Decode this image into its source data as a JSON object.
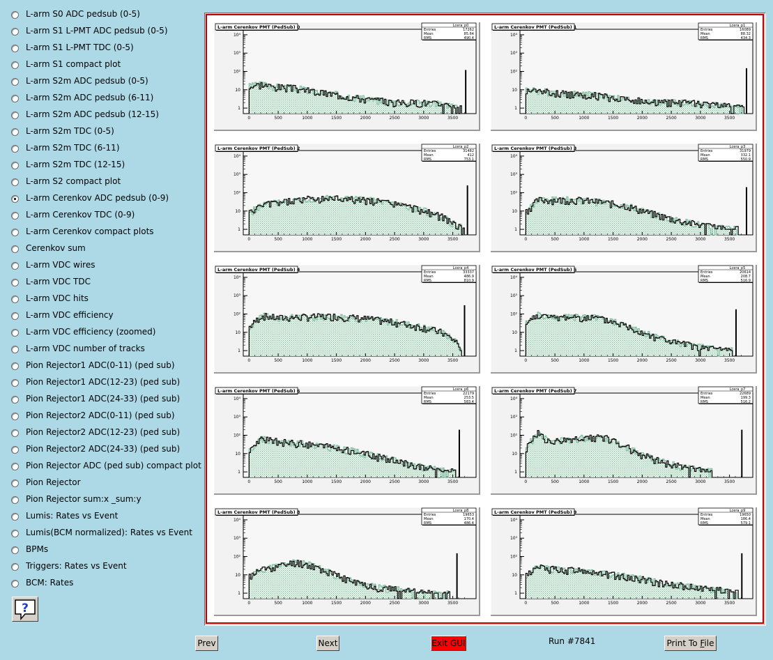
{
  "menu": {
    "selected_index": 11,
    "items": [
      "L-arm S0 ADC pedsub (0-5)",
      "L-arm S1 L-PMT ADC pedsub (0-5)",
      "L-arm S1 L-PMT TDC (0-5)",
      "L-arm S1 compact plot",
      "L-arm S2m ADC pedsub (0-5)",
      "L-arm S2m ADC pedsub (6-11)",
      "L-arm S2m ADC pedsub (12-15)",
      "L-arm S2m TDC (0-5)",
      "L-arm S2m TDC (6-11)",
      "L-arm S2m TDC (12-15)",
      "L-arm S2 compact plot",
      "L-arm Cerenkov ADC pedsub (0-9)",
      "L-arm Cerenkov TDC (0-9)",
      "L-arm Cerenkov compact plots",
      "Cerenkov sum",
      "L-arm VDC wires",
      "L-arm VDC TDC",
      "L-arm VDC hits",
      "L-arm VDC efficiency",
      "L-arm VDC efficiency (zoomed)",
      "L-arm VDC number of tracks",
      "Pion Rejector1 ADC(0-11) (ped sub)",
      "Pion Rejector1 ADC(12-23) (ped sub)",
      "Pion Rejector1 ADC(24-33) (ped sub)",
      "Pion Rejector2 ADC(0-11) (ped sub)",
      "Pion Rejector2 ADC(12-23) (ped sub)",
      "Pion Rejector2 ADC(24-33) (ped sub)",
      "Pion Rejector ADC (ped sub) compact plot",
      "Pion Rejector",
      "Pion Rejector sum:x _sum:y",
      "Lumis: Rates vs Event",
      "Lumis(BCM normalized): Rates vs Event",
      "BPMs",
      "Triggers: Rates vs Event",
      "BCM: Rates"
    ]
  },
  "help_icon": "question-mark-icon",
  "footer": {
    "prev_label": "Prev",
    "next_label": "Next",
    "exit_label": "Exit GUI",
    "run_label": "Run #7841",
    "print_label_pre": "Print To ",
    "print_label_ul": "F",
    "print_label_post": "ile"
  },
  "colors": {
    "background": "#add8e6",
    "canvas_border": "#c00000",
    "fill_hatch": "#7fbf9f",
    "exit_button": "#ff0000"
  },
  "chart_data": [
    {
      "type": "bar",
      "title": "L-arm Cerenkov PMT (PedSub) 0",
      "stats": {
        "name": "Lcera_p0",
        "Entries": "17262",
        "Mean": "85.64",
        "RMS": "490.4"
      },
      "xlim": [
        -100,
        3900
      ],
      "y_log": true,
      "ylim": [
        0.5,
        20000
      ],
      "x_ticks": [
        "0",
        "500",
        "1000",
        "1500",
        "2000",
        "2500",
        "3000",
        "3500"
      ],
      "y_ticks": [
        "1",
        "10",
        "10²",
        "10³",
        "10⁴"
      ],
      "profile": {
        "bulk": [
          [
            0,
            15
          ],
          [
            200,
            20
          ],
          [
            400,
            15
          ],
          [
            800,
            12
          ],
          [
            1200,
            7
          ],
          [
            1600,
            5
          ],
          [
            2000,
            3
          ],
          [
            2500,
            2
          ],
          [
            3000,
            2
          ],
          [
            3400,
            1.5
          ],
          [
            3600,
            1
          ]
        ],
        "cutoff": 3650,
        "overflow_x": 3710,
        "overflow_y": 120
      }
    },
    {
      "type": "bar",
      "title": "L-arm Cerenkov PMT (PedSub) 1",
      "stats": {
        "name": "Lcera_p1",
        "Entries": "16089",
        "Mean": "88.32",
        "RMS": "434.3"
      },
      "xlim": [
        -100,
        3900
      ],
      "y_log": true,
      "ylim": [
        0.5,
        20000
      ],
      "x_ticks": [
        "0",
        "500",
        "1000",
        "1500",
        "2000",
        "2500",
        "3000",
        "3500"
      ],
      "y_ticks": [
        "1",
        "10",
        "10²",
        "10³",
        "10⁴"
      ],
      "profile": {
        "bulk": [
          [
            0,
            10
          ],
          [
            300,
            8
          ],
          [
            700,
            6
          ],
          [
            1200,
            5
          ],
          [
            1700,
            3
          ],
          [
            2200,
            2
          ],
          [
            2700,
            2
          ],
          [
            3200,
            1.5
          ],
          [
            3700,
            1
          ]
        ],
        "cutoff": 3750,
        "overflow_x": 3780,
        "overflow_y": 150
      }
    },
    {
      "type": "bar",
      "title": "L-arm Cerenkov PMT (PedSub) 2",
      "stats": {
        "name": "Lcera_p2",
        "Entries": "31482",
        "Mean": "412",
        "RMS": "753.1"
      },
      "xlim": [
        -100,
        3900
      ],
      "y_log": true,
      "ylim": [
        0.5,
        20000
      ],
      "x_ticks": [
        "0",
        "500",
        "1000",
        "1500",
        "2000",
        "2500",
        "3000",
        "3500"
      ],
      "y_ticks": [
        "1",
        "10",
        "10²",
        "10³",
        "10⁴"
      ],
      "profile": {
        "bulk": [
          [
            0,
            8
          ],
          [
            200,
            20
          ],
          [
            500,
            30
          ],
          [
            1000,
            45
          ],
          [
            1500,
            50
          ],
          [
            2000,
            40
          ],
          [
            2500,
            25
          ],
          [
            3000,
            10
          ],
          [
            3300,
            5
          ],
          [
            3500,
            2
          ],
          [
            3700,
            1
          ]
        ],
        "cutoff": 3700,
        "overflow_x": 3740,
        "overflow_y": 250
      }
    },
    {
      "type": "bar",
      "title": "L-arm Cerenkov PMT (PedSub) 3",
      "stats": {
        "name": "Lcera_p3",
        "Entries": "31979",
        "Mean": "332.1",
        "RMS": "550.9"
      },
      "xlim": [
        -100,
        3900
      ],
      "y_log": true,
      "ylim": [
        0.5,
        20000
      ],
      "x_ticks": [
        "0",
        "500",
        "1000",
        "1500",
        "2000",
        "2500",
        "3000",
        "3500"
      ],
      "y_ticks": [
        "1",
        "10",
        "10²",
        "10³",
        "10⁴"
      ],
      "profile": {
        "bulk": [
          [
            0,
            10
          ],
          [
            200,
            40
          ],
          [
            500,
            40
          ],
          [
            900,
            40
          ],
          [
            1300,
            30
          ],
          [
            1700,
            20
          ],
          [
            2100,
            8
          ],
          [
            2600,
            3
          ],
          [
            3100,
            1.5
          ],
          [
            3600,
            1
          ]
        ],
        "cutoff": 3650,
        "overflow_x": 3780,
        "overflow_y": 200
      }
    },
    {
      "type": "bar",
      "title": "L-arm Cerenkov PMT (PedSub) 4",
      "stats": {
        "name": "Lcera_p4",
        "Entries": "33337",
        "Mean": "486.9",
        "RMS": "810.9"
      },
      "xlim": [
        -100,
        3900
      ],
      "y_log": true,
      "ylim": [
        0.5,
        20000
      ],
      "x_ticks": [
        "0",
        "500",
        "1000",
        "1500",
        "2000",
        "2500",
        "3000",
        "3500"
      ],
      "y_ticks": [
        "1",
        "10",
        "10²",
        "10³",
        "10⁴"
      ],
      "profile": {
        "bulk": [
          [
            0,
            20
          ],
          [
            200,
            80
          ],
          [
            500,
            60
          ],
          [
            1000,
            70
          ],
          [
            1500,
            75
          ],
          [
            2000,
            55
          ],
          [
            2500,
            35
          ],
          [
            3000,
            18
          ],
          [
            3300,
            10
          ],
          [
            3550,
            3
          ],
          [
            3650,
            1
          ]
        ],
        "cutoff": 3650,
        "overflow_x": 3690,
        "overflow_y": 300
      }
    },
    {
      "type": "bar",
      "title": "L-arm Cerenkov PMT (PedSub) 5",
      "stats": {
        "name": "Lcera_p5",
        "Entries": "20614",
        "Mean": "208.7",
        "RMS": "516.9"
      },
      "xlim": [
        -100,
        3900
      ],
      "y_log": true,
      "ylim": [
        0.5,
        20000
      ],
      "x_ticks": [
        "0",
        "500",
        "1000",
        "1500",
        "2000",
        "2500",
        "3000",
        "3500"
      ],
      "y_ticks": [
        "1",
        "10",
        "10²",
        "10³",
        "10⁴"
      ],
      "profile": {
        "bulk": [
          [
            0,
            30
          ],
          [
            200,
            100
          ],
          [
            400,
            60
          ],
          [
            800,
            70
          ],
          [
            1200,
            60
          ],
          [
            1600,
            30
          ],
          [
            2000,
            10
          ],
          [
            2500,
            3
          ],
          [
            3000,
            1.5
          ],
          [
            3500,
            1
          ]
        ],
        "cutoff": 3550,
        "overflow_x": 3600,
        "overflow_y": 180
      }
    },
    {
      "type": "bar",
      "title": "L-arm Cerenkov PMT (PedSub) 6",
      "stats": {
        "name": "Lcera_p6",
        "Entries": "22179",
        "Mean": "253.5",
        "RMS": "583.4"
      },
      "xlim": [
        -100,
        3900
      ],
      "y_log": true,
      "ylim": [
        0.5,
        20000
      ],
      "x_ticks": [
        "0",
        "500",
        "1000",
        "1500",
        "2000",
        "2500",
        "3000",
        "3500"
      ],
      "y_ticks": [
        "1",
        "10",
        "10²",
        "10³",
        "10⁴"
      ],
      "profile": {
        "bulk": [
          [
            0,
            15
          ],
          [
            200,
            60
          ],
          [
            500,
            45
          ],
          [
            900,
            35
          ],
          [
            1300,
            25
          ],
          [
            1700,
            15
          ],
          [
            2100,
            8
          ],
          [
            2500,
            4
          ],
          [
            2900,
            2
          ],
          [
            3300,
            1.2
          ],
          [
            3500,
            1
          ]
        ],
        "cutoff": 3550,
        "overflow_x": 3600,
        "overflow_y": 200
      }
    },
    {
      "type": "bar",
      "title": "L-arm Cerenkov PMT (PedSub) 7",
      "stats": {
        "name": "Lcera_p7",
        "Entries": "22689",
        "Mean": "199.3",
        "RMS": "516.2"
      },
      "xlim": [
        -100,
        3900
      ],
      "y_log": true,
      "ylim": [
        0.5,
        20000
      ],
      "x_ticks": [
        "0",
        "500",
        "1000",
        "1500",
        "2000",
        "2500",
        "3000",
        "3500"
      ],
      "y_ticks": [
        "1",
        "10",
        "10²",
        "10³",
        "10⁴"
      ],
      "profile": {
        "bulk": [
          [
            0,
            20
          ],
          [
            200,
            150
          ],
          [
            400,
            40
          ],
          [
            800,
            60
          ],
          [
            1100,
            80
          ],
          [
            1400,
            70
          ],
          [
            1700,
            25
          ],
          [
            2000,
            8
          ],
          [
            2400,
            3
          ],
          [
            2800,
            1.5
          ],
          [
            3200,
            1
          ]
        ],
        "cutoff": 3200,
        "overflow_x": 3700,
        "overflow_y": 200
      }
    },
    {
      "type": "bar",
      "title": "L-arm Cerenkov PMT (PedSub) 8",
      "stats": {
        "name": "Lcera_p8",
        "Entries": "19653",
        "Mean": "170.4",
        "RMS": "486.4"
      },
      "xlim": [
        -100,
        3900
      ],
      "y_log": true,
      "ylim": [
        0.5,
        20000
      ],
      "x_ticks": [
        "0",
        "500",
        "1000",
        "1500",
        "2000",
        "2500",
        "3000",
        "3500"
      ],
      "y_ticks": [
        "1",
        "10",
        "10²",
        "10³",
        "10⁴"
      ],
      "profile": {
        "bulk": [
          [
            0,
            8
          ],
          [
            200,
            20
          ],
          [
            500,
            30
          ],
          [
            800,
            50
          ],
          [
            1100,
            30
          ],
          [
            1400,
            12
          ],
          [
            1800,
            4
          ],
          [
            2200,
            2
          ],
          [
            2600,
            1.5
          ],
          [
            3000,
            1
          ],
          [
            3400,
            1
          ]
        ],
        "cutoff": 3450,
        "overflow_x": 3560,
        "overflow_y": 150
      }
    },
    {
      "type": "bar",
      "title": "L-arm Cerenkov PMT (PedSub) 9",
      "stats": {
        "name": "Lcera_p9",
        "Entries": "19650",
        "Mean": "186.4",
        "RMS": "579.1"
      },
      "xlim": [
        -100,
        3900
      ],
      "y_log": true,
      "ylim": [
        0.5,
        20000
      ],
      "x_ticks": [
        "0",
        "500",
        "1000",
        "1500",
        "2000",
        "2500",
        "3000",
        "3500"
      ],
      "y_ticks": [
        "1",
        "10",
        "10²",
        "10³",
        "10⁴"
      ],
      "profile": {
        "bulk": [
          [
            0,
            10
          ],
          [
            200,
            25
          ],
          [
            500,
            20
          ],
          [
            900,
            18
          ],
          [
            1300,
            12
          ],
          [
            1700,
            8
          ],
          [
            2100,
            5
          ],
          [
            2500,
            3
          ],
          [
            2900,
            2
          ],
          [
            3300,
            1.5
          ],
          [
            3600,
            1
          ]
        ],
        "cutoff": 3650,
        "overflow_x": 3700,
        "overflow_y": 150
      }
    }
  ]
}
